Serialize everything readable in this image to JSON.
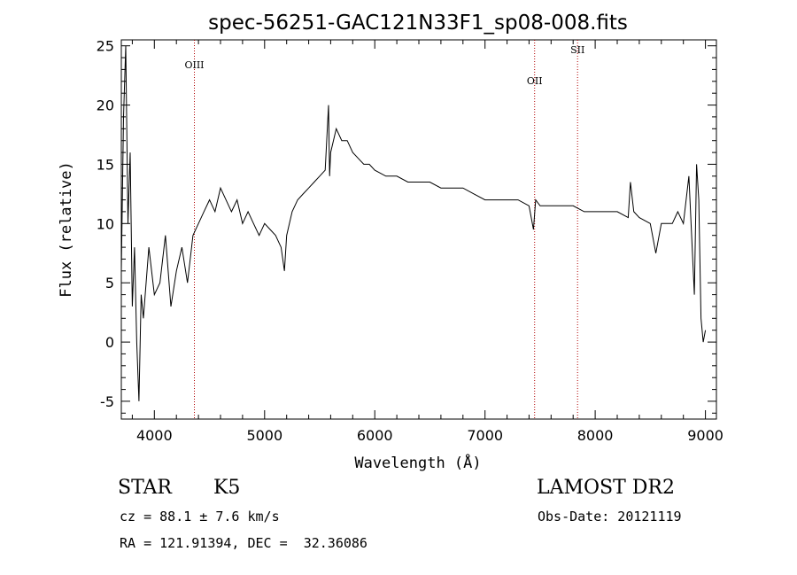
{
  "chart_data": {
    "type": "line",
    "title": "spec-56251-GAC121N33F1_sp08-008.fits",
    "xlabel": "Wavelength (Å)",
    "ylabel": "Flux (relative)",
    "xlim": [
      3700,
      9100
    ],
    "ylim": [
      -6.5,
      25.5
    ],
    "xticks": [
      4000,
      5000,
      6000,
      7000,
      8000,
      9000
    ],
    "yticks": [
      -5,
      0,
      5,
      10,
      15,
      20,
      25
    ],
    "grid": false,
    "series": [
      {
        "x": [
          3700,
          3720,
          3740,
          3760,
          3780,
          3800,
          3820,
          3840,
          3860,
          3880,
          3900,
          3950,
          4000,
          4050,
          4100,
          4150,
          4200,
          4250,
          4300,
          4350,
          4400,
          4450,
          4500,
          4550,
          4600,
          4650,
          4700,
          4750,
          4800,
          4850,
          4900,
          4950,
          5000,
          5050,
          5100,
          5150,
          5180,
          5200,
          5250,
          5300,
          5350,
          5400,
          5450,
          5500,
          5550,
          5580,
          5590,
          5600,
          5650,
          5700,
          5750,
          5800,
          5850,
          5900,
          5950,
          6000,
          6100,
          6200,
          6300,
          6400,
          6500,
          6600,
          6700,
          6800,
          6900,
          7000,
          7100,
          7200,
          7300,
          7400,
          7440,
          7460,
          7500,
          7600,
          7700,
          7800,
          7900,
          8000,
          8100,
          8200,
          8300,
          8320,
          8350,
          8400,
          8500,
          8550,
          8600,
          8700,
          8750,
          8800,
          8850,
          8900,
          8920,
          8940,
          8960,
          8980,
          9000
        ],
        "y": [
          6,
          19,
          25,
          10,
          16,
          3,
          8,
          0,
          -5,
          4,
          2,
          8,
          4,
          5,
          9,
          3,
          6,
          8,
          5,
          9,
          10,
          11,
          12,
          11,
          13,
          12,
          11,
          12,
          10,
          11,
          10,
          9,
          10,
          9.5,
          9,
          8,
          6,
          9,
          11,
          12,
          12.5,
          13,
          13.5,
          14,
          14.5,
          20,
          14,
          16,
          18,
          17,
          17,
          16,
          15.5,
          15,
          15,
          14.5,
          14,
          14,
          13.5,
          13.5,
          13.5,
          13,
          13,
          13,
          12.5,
          12,
          12,
          12,
          12,
          11.5,
          9.5,
          12,
          11.5,
          11.5,
          11.5,
          11.5,
          11,
          11,
          11,
          11,
          10.5,
          13.5,
          11,
          10.5,
          10,
          7.5,
          10,
          10,
          11,
          10,
          14,
          4,
          15,
          12,
          2,
          0,
          1
        ]
      }
    ],
    "lines": [
      {
        "label": "OIII",
        "x": 4363
      },
      {
        "label": "OII",
        "x": 7450
      },
      {
        "label": "SII",
        "x": 7840
      }
    ]
  },
  "info": {
    "class_label": "STAR",
    "subclass": "K5",
    "survey": "LAMOST DR2",
    "cz": "cz = 88.1 ± 7.6 km/s",
    "obs_date": "Obs-Date: 20121119",
    "radec": "RA = 121.91394, DEC =  32.36086"
  }
}
